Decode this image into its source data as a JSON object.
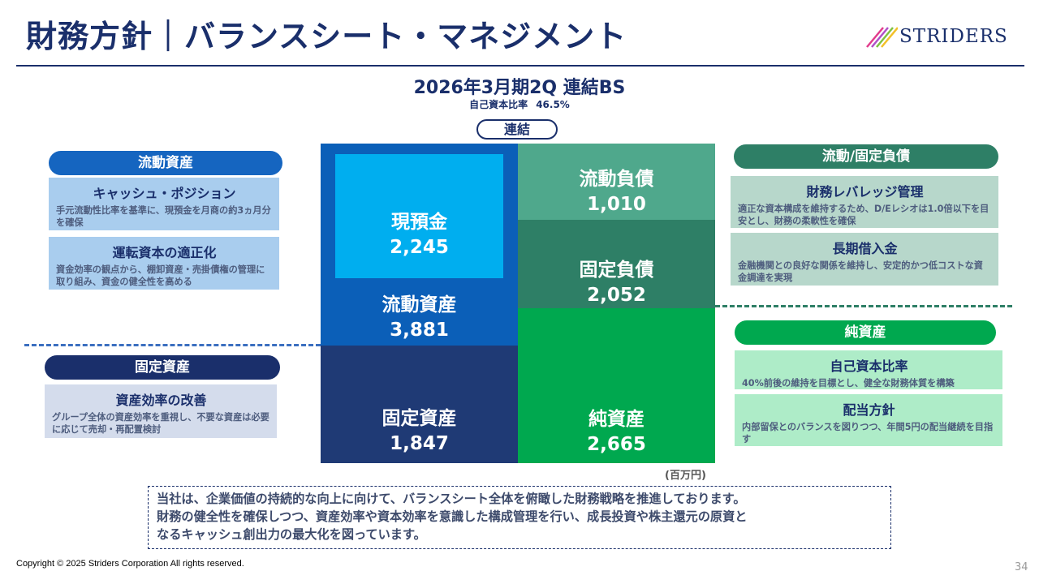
{
  "header": {
    "title": "財務方針｜バランスシート・マネジメント",
    "logo_text": "STRIDERS"
  },
  "bs": {
    "title": "2026年3月期2Q 連結BS",
    "equity_ratio_label": "自己資本比率",
    "equity_ratio_value": "46.5%",
    "consolidated_badge": "連結",
    "unit": "(百万円)",
    "blocks": {
      "cash": {
        "name": "現預金",
        "value": "2,245"
      },
      "current_assets": {
        "name": "流動資産",
        "value": "3,881"
      },
      "fixed_assets": {
        "name": "固定資産",
        "value": "1,847"
      },
      "current_liabilities": {
        "name": "流動負債",
        "value": "1,010"
      },
      "fixed_liabilities": {
        "name": "固定負債",
        "value": "2,052"
      },
      "net_assets": {
        "name": "純資産",
        "value": "2,665"
      }
    }
  },
  "left": {
    "current_assets_pill": "流動資産",
    "cash_card": {
      "title": "キャッシュ・ポジション",
      "desc": "手元流動性比率を基準に、現預金を月商の約3ヵ月分を確保"
    },
    "wc_card": {
      "title": "運転資本の適正化",
      "desc": "資金効率の観点から、棚卸資産・売掛債権の管理に取り組み、資金の健全性を高める"
    },
    "fixed_assets_pill": "固定資産",
    "eff_card": {
      "title": "資産効率の改善",
      "desc": "グループ全体の資産効率を重視し、不要な資産は必要に応じて売却・再配置検討"
    }
  },
  "right": {
    "liabilities_pill": "流動/固定負債",
    "leverage_card": {
      "title": "財務レバレッジ管理",
      "desc": "適正な資本構成を維持するため、D/Eレシオは1.0倍以下を目安とし、財務の柔軟性を確保"
    },
    "loan_card": {
      "title": "長期借入金",
      "desc": "金融機関との良好な関係を維持し、安定的かつ低コストな資金調達を実現"
    },
    "net_assets_pill": "純資産",
    "equity_card": {
      "title": "自己資本比率",
      "desc": "40%前後の維持を目標とし、健全な財務体質を構築"
    },
    "dividend_card": {
      "title": "配当方針",
      "desc": "内部留保とのバランスを図りつつ、年間5円の配当継続を目指す"
    }
  },
  "note": {
    "line1": "当社は、企業価値の持続的な向上に向けて、バランスシート全体を俯瞰した財務戦略を推進しております。",
    "line2": "財務の健全性を確保しつつ、資産効率や資本効率を意識した構成管理を行い、成長投資や株主還元の原資と",
    "line3": "なるキャッシュ創出力の最大化を図っています。"
  },
  "footer": {
    "copyright": "Copyright © 2025 Striders Corporation All rights reserved.",
    "page": "34"
  },
  "colors": {
    "navy": "#1a2f6b",
    "current_assets": "#0b5fb8",
    "cash": "#00aeef",
    "fixed_assets": "#1f3a75",
    "current_liabilities": "#4fa88c",
    "fixed_liabilities": "#2e7f66",
    "net_assets": "#00a84f"
  }
}
